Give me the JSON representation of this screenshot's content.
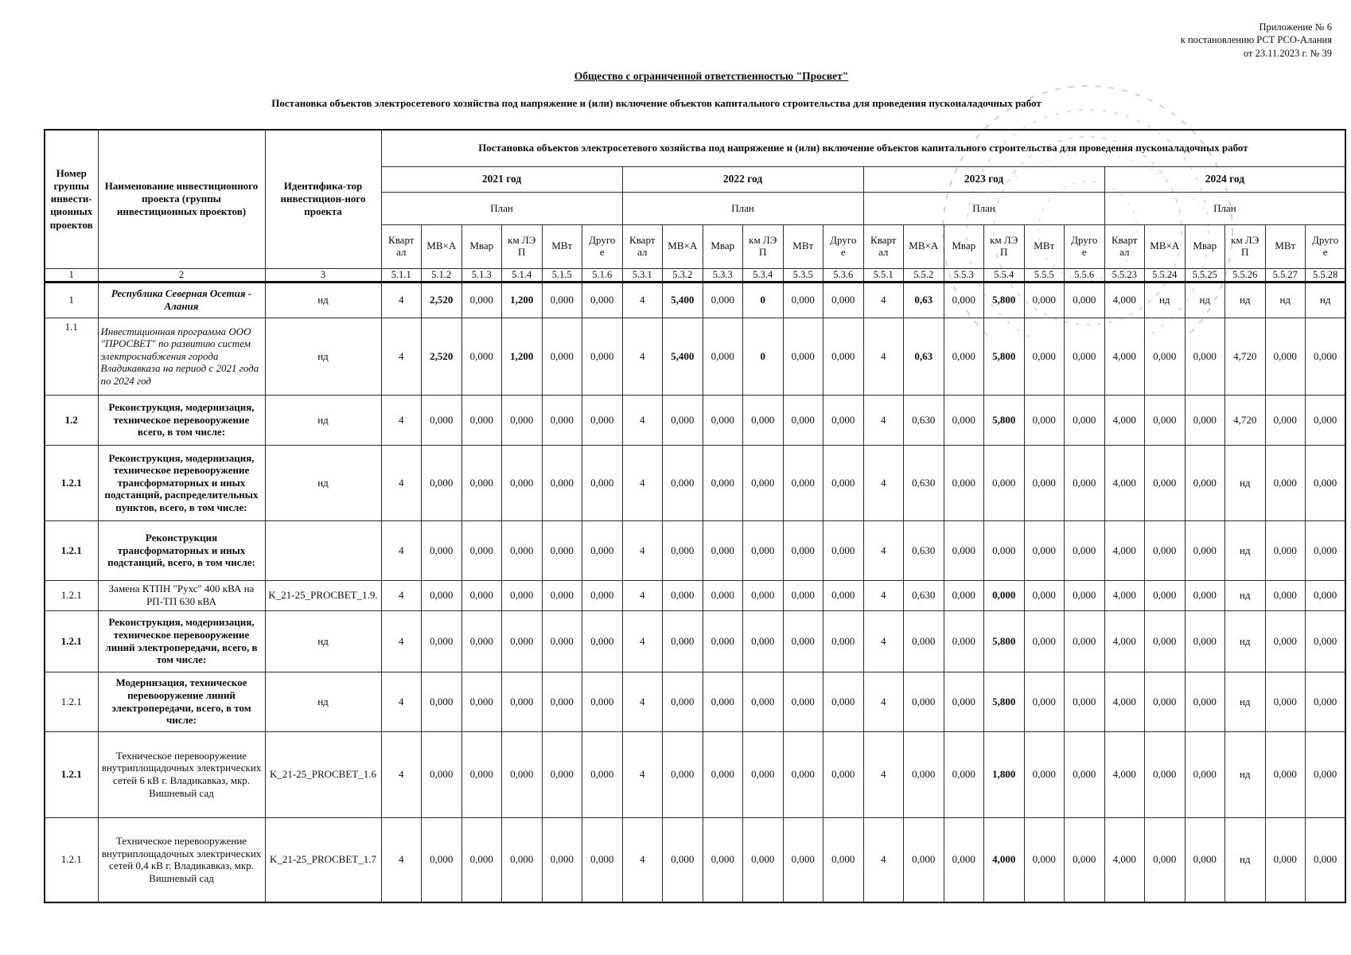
{
  "page": {
    "appendix_lines": [
      "Приложение № 6",
      "к постановлению РСТ РСО-Алания",
      "от 23.11.2023 г.  № 39"
    ],
    "title": "Общество с ограниченной ответственностью \"Просвет\"",
    "subtitle": "Постановка объектов электросетевого хозяйства под напряжение и (или) включение объектов капитального строительства для проведения пусконаладочных работ",
    "stamp": "round-seal-watermark"
  },
  "table": {
    "span_header": "Постановка объектов электросетевого хозяйства под напряжение и (или) включение объектов капитального строительства для проведения пусконаладочных работ",
    "col1": "Номер группы инвести-ционных проектов",
    "col2": "Наименование инвестиционного проекта (группы инвестиционных проектов)",
    "col3": "Идентифика-тор инвестицион-ного проекта",
    "years": [
      "2021 год",
      "2022 год",
      "2023 год",
      "2024 год"
    ],
    "plan_label": "План",
    "unit_headers": [
      "Квартал",
      "МВ×А",
      "Мвар",
      "км ЛЭП",
      "МВт",
      "Другое"
    ],
    "numbering": [
      "1",
      "2",
      "3",
      "5.1.1",
      "5.1.2",
      "5.1.3",
      "5.1.4",
      "5.1.5",
      "5.1.6",
      "5.3.1",
      "5.3.2",
      "5.3.3",
      "5.3.4",
      "5.3.5",
      "5.3.6",
      "5.5.1",
      "5.5.2",
      "5.5.3",
      "5.5.4",
      "5.5.5",
      "5.5.6",
      "5.5.23",
      "5.5.24",
      "5.5.25",
      "5.5.26",
      "5.5.27",
      "5.5.28"
    ],
    "rows": [
      {
        "num": "1",
        "num_bold": false,
        "name": "Республика Северная Осетия - Алания",
        "name_style": "bold-italic",
        "name_align": "center",
        "id": "нд",
        "values": [
          "4",
          "2,520",
          "0,000",
          "1,200",
          "0,000",
          "0,000",
          "4",
          "5,400",
          "0,000",
          "0",
          "0,000",
          "0,000",
          "4",
          "0,63",
          "0,000",
          "5,800",
          "0,000",
          "0,000",
          "4,000",
          "нд",
          "нд",
          "нд",
          "нд",
          "нд"
        ],
        "bold_cols": [
          1,
          3,
          7,
          9,
          13,
          15
        ]
      },
      {
        "num": "1.1",
        "num_bold": false,
        "name": "Инвестиционная программа ООО \"ПРОСВЕТ\" по развитию систем электроснабжения города Владикавказа на период с 2021 года по 2024 год",
        "name_style": "italic",
        "name_align": "left",
        "id": "нд",
        "values": [
          "4",
          "2,520",
          "0,000",
          "1,200",
          "0,000",
          "0,000",
          "4",
          "5,400",
          "0,000",
          "0",
          "0,000",
          "0,000",
          "4",
          "0,63",
          "0,000",
          "5,800",
          "0,000",
          "0,000",
          "4,000",
          "0,000",
          "0,000",
          "4,720",
          "0,000",
          "0,000"
        ],
        "bold_cols": [
          1,
          3,
          7,
          9,
          13,
          15
        ]
      },
      {
        "num": "1.2",
        "num_bold": true,
        "name": "Реконструкция, модернизация, техническое перевооружение всего, в том числе:",
        "name_style": "bold",
        "name_align": "center",
        "id": "нд",
        "values": [
          "4",
          "0,000",
          "0,000",
          "0,000",
          "0,000",
          "0,000",
          "4",
          "0,000",
          "0,000",
          "0,000",
          "0,000",
          "0,000",
          "4",
          "0,630",
          "0,000",
          "5,800",
          "0,000",
          "0,000",
          "4,000",
          "0,000",
          "0,000",
          "4,720",
          "0,000",
          "0,000"
        ],
        "bold_cols": [
          15
        ]
      },
      {
        "num": "1.2.1",
        "num_bold": true,
        "name": "Реконструкция, модернизация, техническое перевооружение трансформаторных и иных подстанций, распределительных пунктов, всего, в том числе:",
        "name_style": "bold",
        "name_align": "center",
        "id": "нд",
        "values": [
          "4",
          "0,000",
          "0,000",
          "0,000",
          "0,000",
          "0,000",
          "4",
          "0,000",
          "0,000",
          "0,000",
          "0,000",
          "0,000",
          "4",
          "0,630",
          "0,000",
          "0,000",
          "0,000",
          "0,000",
          "4,000",
          "0,000",
          "0,000",
          "нд",
          "0,000",
          "0,000"
        ],
        "bold_cols": []
      },
      {
        "num": "1.2.1",
        "num_bold": true,
        "name": "Реконструкция трансформаторных и иных подстанций,  всего, в том числе:",
        "name_style": "bold",
        "name_align": "center",
        "id": "",
        "values": [
          "4",
          "0,000",
          "0,000",
          "0,000",
          "0,000",
          "0,000",
          "4",
          "0,000",
          "0,000",
          "0,000",
          "0,000",
          "0,000",
          "4",
          "0,630",
          "0,000",
          "0,000",
          "0,000",
          "0,000",
          "4,000",
          "0,000",
          "0,000",
          "нд",
          "0,000",
          "0,000"
        ],
        "bold_cols": []
      },
      {
        "num": "1.2.1",
        "num_bold": false,
        "name": "Замена КТПН \"Рухс\" 400 кВА на РП-ТП 630 кВА",
        "name_style": "normal",
        "name_align": "center",
        "id": "K_21-25_PROCBET_1.9.",
        "values": [
          "4",
          "0,000",
          "0,000",
          "0,000",
          "0,000",
          "0,000",
          "4",
          "0,000",
          "0,000",
          "0,000",
          "0,000",
          "0,000",
          "4",
          "0,630",
          "0,000",
          "0,000",
          "0,000",
          "0,000",
          "4,000",
          "0,000",
          "0,000",
          "нд",
          "0,000",
          "0,000"
        ],
        "bold_cols": [
          15
        ]
      },
      {
        "num": "1.2.1",
        "num_bold": true,
        "name": "Реконструкция, модернизация, техническое перевооружение линий электропередачи, всего, в том числе:",
        "name_style": "bold",
        "name_align": "center",
        "id": "нд",
        "values": [
          "4",
          "0,000",
          "0,000",
          "0,000",
          "0,000",
          "0,000",
          "4",
          "0,000",
          "0,000",
          "0,000",
          "0,000",
          "0,000",
          "4",
          "0,000",
          "0,000",
          "5,800",
          "0,000",
          "0,000",
          "4,000",
          "0,000",
          "0,000",
          "нд",
          "0,000",
          "0,000"
        ],
        "bold_cols": [
          15
        ]
      },
      {
        "num": "1.2.1",
        "num_bold": false,
        "name": "Модернизация, техническое перевооружение линий электропередачи, всего, в том числе:",
        "name_style": "bold",
        "name_align": "center",
        "id": "нд",
        "values": [
          "4",
          "0,000",
          "0,000",
          "0,000",
          "0,000",
          "0,000",
          "4",
          "0,000",
          "0,000",
          "0,000",
          "0,000",
          "0,000",
          "4",
          "0,000",
          "0,000",
          "5,800",
          "0,000",
          "0,000",
          "4,000",
          "0,000",
          "0,000",
          "нд",
          "0,000",
          "0,000"
        ],
        "bold_cols": [
          15
        ]
      },
      {
        "num": "1.2.1",
        "num_bold": true,
        "name": "Техническое перевооружение внутриплощадочных электрических сетей 6 кВ г. Владикавказ, мкр. Вишневый сад",
        "name_style": "normal",
        "name_align": "center",
        "id": "K_21-25_PROCBET_1.6",
        "values": [
          "4",
          "0,000",
          "0,000",
          "0,000",
          "0,000",
          "0,000",
          "4",
          "0,000",
          "0,000",
          "0,000",
          "0,000",
          "0,000",
          "4",
          "0,000",
          "0,000",
          "1,800",
          "0,000",
          "0,000",
          "4,000",
          "0,000",
          "0,000",
          "нд",
          "0,000",
          "0,000"
        ],
        "bold_cols": [
          15
        ]
      },
      {
        "num": "1.2.1",
        "num_bold": false,
        "name": "Техническое перевооружение внутриплощадочных электрических сетей 0,4 кВ г. Владикавказ, мкр. Вишневый сад",
        "name_style": "normal",
        "name_align": "center",
        "id": "K_21-25_PROCBET_1.7",
        "values": [
          "4",
          "0,000",
          "0,000",
          "0,000",
          "0,000",
          "0,000",
          "4",
          "0,000",
          "0,000",
          "0,000",
          "0,000",
          "0,000",
          "4",
          "0,000",
          "0,000",
          "4,000",
          "0,000",
          "0,000",
          "4,000",
          "0,000",
          "0,000",
          "нд",
          "0,000",
          "0,000"
        ],
        "bold_cols": [
          15
        ]
      }
    ]
  }
}
